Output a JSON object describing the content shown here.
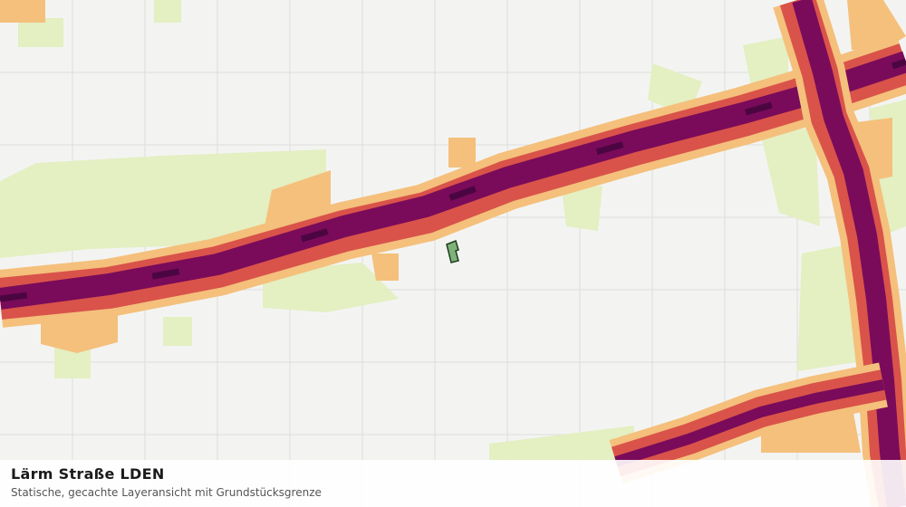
{
  "caption": {
    "title": "Lärm Straße LDEN",
    "subtitle": "Statische, gecachte Layeransicht mit Grundstücksgrenze"
  }
}
